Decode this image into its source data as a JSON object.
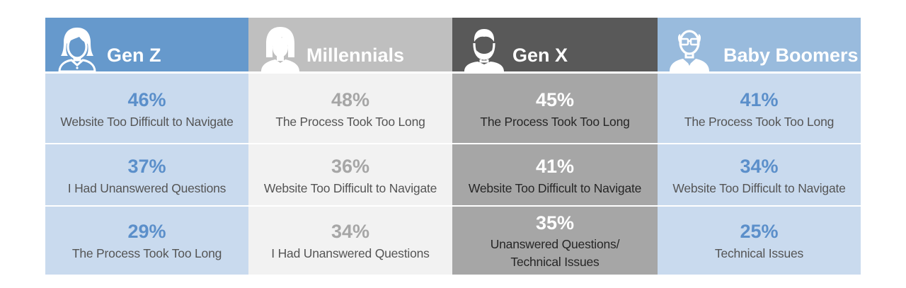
{
  "colors": {
    "genz_header": "#6699cc",
    "genz_cell": "#c9daee",
    "genz_pct": "#5b8fca",
    "genz_label": "#555555",
    "millennials_header": "#bfbfbf",
    "millennials_cell": "#f2f2f2",
    "millennials_pct": "#a6a6a6",
    "millennials_label": "#555555",
    "genx_header": "#595959",
    "genx_cell": "#a6a6a6",
    "genx_pct": "#ffffff",
    "genx_label": "#262626",
    "boomers_header": "#99bbdd",
    "boomers_cell": "#c9daee",
    "boomers_pct": "#5b8fca",
    "boomers_label": "#555555"
  },
  "columns": [
    {
      "title": "Gen Z",
      "icon": "young-woman-icon",
      "rows": [
        {
          "pct": "46%",
          "label": "Website Too Difficult to Navigate"
        },
        {
          "pct": "37%",
          "label": "I Had Unanswered Questions"
        },
        {
          "pct": "29%",
          "label": "The Process Took Too Long"
        }
      ]
    },
    {
      "title": "Millennials",
      "icon": "woman-icon",
      "rows": [
        {
          "pct": "48%",
          "label": "The Process Took Too Long"
        },
        {
          "pct": "36%",
          "label": "Website Too Difficult to Navigate"
        },
        {
          "pct": "34%",
          "label": "I Had Unanswered Questions"
        }
      ]
    },
    {
      "title": "Gen X",
      "icon": "bearded-man-icon",
      "rows": [
        {
          "pct": "45%",
          "label": "The Process Took Too Long"
        },
        {
          "pct": "41%",
          "label": "Website Too Difficult to Navigate"
        },
        {
          "pct": "35%",
          "label_line1": "Unanswered Questions/",
          "label_line2": "Technical Issues"
        }
      ]
    },
    {
      "title": "Baby Boomers",
      "icon": "older-man-glasses-icon",
      "rows": [
        {
          "pct": "41%",
          "label": "The Process Took Too Long"
        },
        {
          "pct": "34%",
          "label": "Website Too Difficult to Navigate"
        },
        {
          "pct": "25%",
          "label": "Technical Issues"
        }
      ]
    }
  ]
}
